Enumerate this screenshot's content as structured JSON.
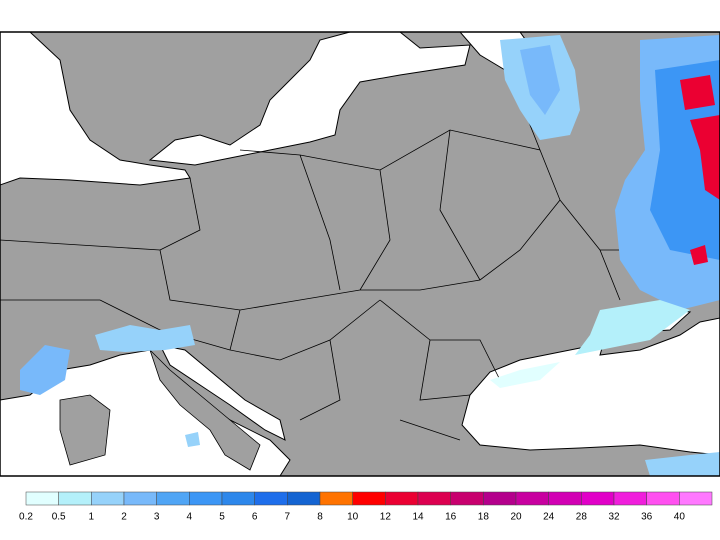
{
  "legend": {
    "labels": [
      0.2,
      0.5,
      1,
      2,
      3,
      4,
      5,
      6,
      7,
      8,
      10,
      12,
      14,
      16,
      18,
      20,
      24,
      28,
      32,
      36,
      40
    ],
    "colors": [
      "#e1ffff",
      "#b4f0fa",
      "#96d2fa",
      "#78b9fa",
      "#50a5f5",
      "#3c96f5",
      "#2d87eb",
      "#1e6eeb",
      "#1464d2",
      "#ff7300",
      "#ff0000",
      "#eb0032",
      "#dc0050",
      "#c8006e",
      "#b4008c",
      "#c800a0",
      "#d200b4",
      "#e100c8",
      "#f01edc",
      "#ff50f0",
      "#ff78ff"
    ]
  }
}
